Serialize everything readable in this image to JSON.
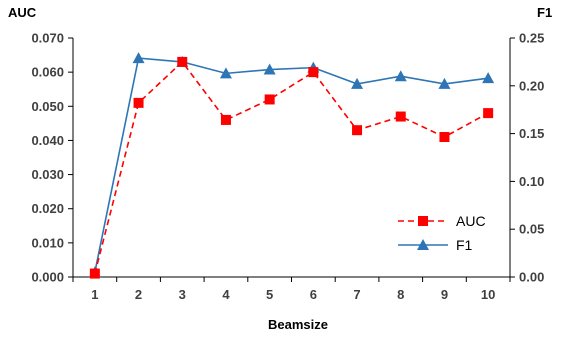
{
  "chart_data": {
    "type": "line",
    "title": "",
    "xlabel": "Beamsize",
    "ylabel_left": "AUC",
    "ylabel_right": "F1",
    "categories": [
      "1",
      "2",
      "3",
      "4",
      "5",
      "6",
      "7",
      "8",
      "9",
      "10"
    ],
    "ylim_left": [
      0,
      0.07
    ],
    "ylim_right": [
      0,
      0.25
    ],
    "yticks_left": [
      "0.000",
      "0.010",
      "0.020",
      "0.030",
      "0.040",
      "0.050",
      "0.060",
      "0.070"
    ],
    "yticks_right": [
      "0.00",
      "0.05",
      "0.10",
      "0.15",
      "0.20",
      "0.25"
    ],
    "grid": false,
    "legend_position": "bottom-right",
    "series": [
      {
        "name": "AUC",
        "axis": "left",
        "color": "#ff0000",
        "marker": "square",
        "line_style": "dashed",
        "values": [
          0.001,
          0.051,
          0.063,
          0.046,
          0.052,
          0.06,
          0.043,
          0.047,
          0.041,
          0.048
        ]
      },
      {
        "name": "F1",
        "axis": "right",
        "color": "#2e75b6",
        "marker": "triangle",
        "line_style": "solid",
        "values": [
          0.005,
          0.229,
          0.225,
          0.213,
          0.217,
          0.219,
          0.202,
          0.21,
          0.202,
          0.208
        ]
      }
    ]
  }
}
